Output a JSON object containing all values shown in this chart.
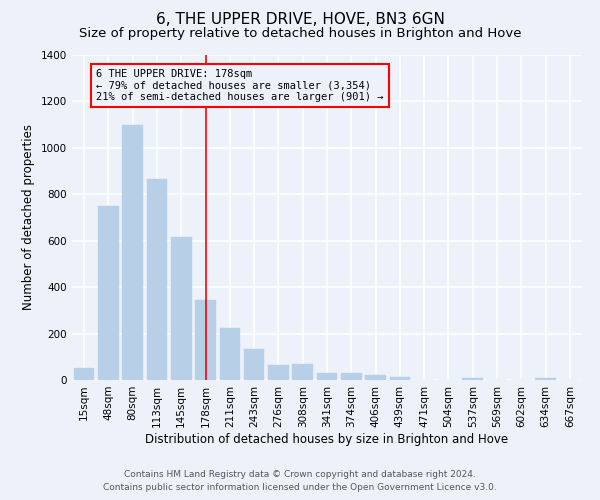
{
  "title": "6, THE UPPER DRIVE, HOVE, BN3 6GN",
  "subtitle": "Size of property relative to detached houses in Brighton and Hove",
  "xlabel": "Distribution of detached houses by size in Brighton and Hove",
  "ylabel": "Number of detached properties",
  "categories": [
    "15sqm",
    "48sqm",
    "80sqm",
    "113sqm",
    "145sqm",
    "178sqm",
    "211sqm",
    "243sqm",
    "276sqm",
    "308sqm",
    "341sqm",
    "374sqm",
    "406sqm",
    "439sqm",
    "471sqm",
    "504sqm",
    "537sqm",
    "569sqm",
    "602sqm",
    "634sqm",
    "667sqm"
  ],
  "values": [
    50,
    750,
    1100,
    865,
    615,
    345,
    225,
    135,
    65,
    70,
    30,
    30,
    20,
    15,
    0,
    0,
    10,
    0,
    0,
    10,
    0
  ],
  "bar_color": "#b8cfe8",
  "bar_edgecolor": "#b8cfe8",
  "vline_x": 5,
  "annotation_text": "6 THE UPPER DRIVE: 178sqm\n← 79% of detached houses are smaller (3,354)\n21% of semi-detached houses are larger (901) →",
  "annotation_box_edgecolor": "red",
  "vline_color": "red",
  "ylim": [
    0,
    1400
  ],
  "yticks": [
    0,
    200,
    400,
    600,
    800,
    1000,
    1200,
    1400
  ],
  "footer_line1": "Contains HM Land Registry data © Crown copyright and database right 2024.",
  "footer_line2": "Contains public sector information licensed under the Open Government Licence v3.0.",
  "background_color": "#edf2fa",
  "grid_color": "white",
  "title_fontsize": 11,
  "subtitle_fontsize": 9.5,
  "axis_label_fontsize": 8.5,
  "tick_fontsize": 7.5,
  "footer_fontsize": 6.5,
  "annotation_fontsize": 7.5
}
